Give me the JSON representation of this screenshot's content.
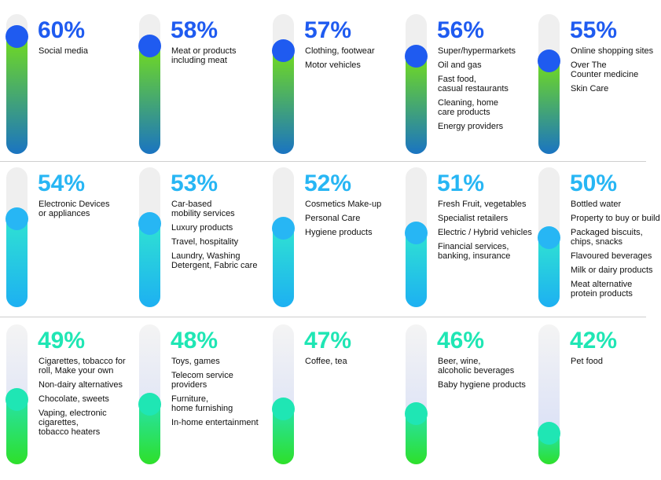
{
  "chart_data": {
    "type": "gauge",
    "ylim": [
      38,
      62
    ],
    "row_styles": [
      {
        "dot": "#1f5bf0",
        "text": "#1f5bf0",
        "fill_top": "#72dc1e",
        "fill_bottom": "#1a74c2",
        "track": "#efefef"
      },
      {
        "dot": "#27b6f4",
        "text": "#27b6f4",
        "fill_top": "#2fe2d2",
        "fill_bottom": "#1db0f2",
        "track": "#efefef"
      },
      {
        "dot": "#1fe6b4",
        "text": "#1fe6b4",
        "fill_top": "#27e2a6",
        "fill_bottom": "#2ee02a",
        "track": "#d4dcf7"
      }
    ],
    "items": [
      {
        "value": 60,
        "value_label": "60%",
        "labels": [
          "Social media"
        ]
      },
      {
        "value": 58,
        "value_label": "58%",
        "labels": [
          "Meat or products\nincluding meat"
        ]
      },
      {
        "value": 57,
        "value_label": "57%",
        "labels": [
          "Clothing, footwear",
          "Motor vehicles"
        ]
      },
      {
        "value": 56,
        "value_label": "56%",
        "labels": [
          "Super/hypermarkets",
          "Oil and gas",
          "Fast food,\ncasual restaurants",
          "Cleaning, home\ncare products",
          "Energy providers"
        ]
      },
      {
        "value": 55,
        "value_label": "55%",
        "labels": [
          "Online shopping sites",
          "Over The\nCounter medicine",
          "Skin Care"
        ]
      },
      {
        "value": 54,
        "value_label": "54%",
        "labels": [
          "Electronic Devices\nor appliances"
        ]
      },
      {
        "value": 53,
        "value_label": "53%",
        "labels": [
          "Car-based\nmobility services",
          "Luxury products",
          "Travel, hospitality",
          "Laundry, Washing\nDetergent, Fabric care"
        ]
      },
      {
        "value": 52,
        "value_label": "52%",
        "labels": [
          "Cosmetics Make-up",
          "Personal Care",
          "Hygiene products"
        ]
      },
      {
        "value": 51,
        "value_label": "51%",
        "labels": [
          "Fresh Fruit, vegetables",
          "Specialist retailers",
          "Electric / Hybrid vehicles",
          "Financial services,\nbanking, insurance"
        ]
      },
      {
        "value": 50,
        "value_label": "50%",
        "labels": [
          "Bottled water",
          "Property to buy or build",
          "Packaged biscuits,\nchips, snacks",
          "Flavoured beverages",
          "Milk or dairy products",
          "Meat alternative\nprotein products"
        ]
      },
      {
        "value": 49,
        "value_label": "49%",
        "labels": [
          "Cigarettes, tobacco for\nroll, Make your own",
          "Non-dairy alternatives",
          "Chocolate, sweets",
          "Vaping, electronic\ncigarettes,\ntobacco heaters"
        ]
      },
      {
        "value": 48,
        "value_label": "48%",
        "labels": [
          "Toys, games",
          "Telecom service\nproviders",
          "Furniture,\nhome furnishing",
          "In-home entertainment"
        ]
      },
      {
        "value": 47,
        "value_label": "47%",
        "labels": [
          "Coffee, tea"
        ]
      },
      {
        "value": 46,
        "value_label": "46%",
        "labels": [
          "Beer, wine,\nalcoholic beverages",
          "Baby hygiene products"
        ]
      },
      {
        "value": 42,
        "value_label": "42%",
        "labels": [
          "Pet food"
        ]
      }
    ]
  }
}
